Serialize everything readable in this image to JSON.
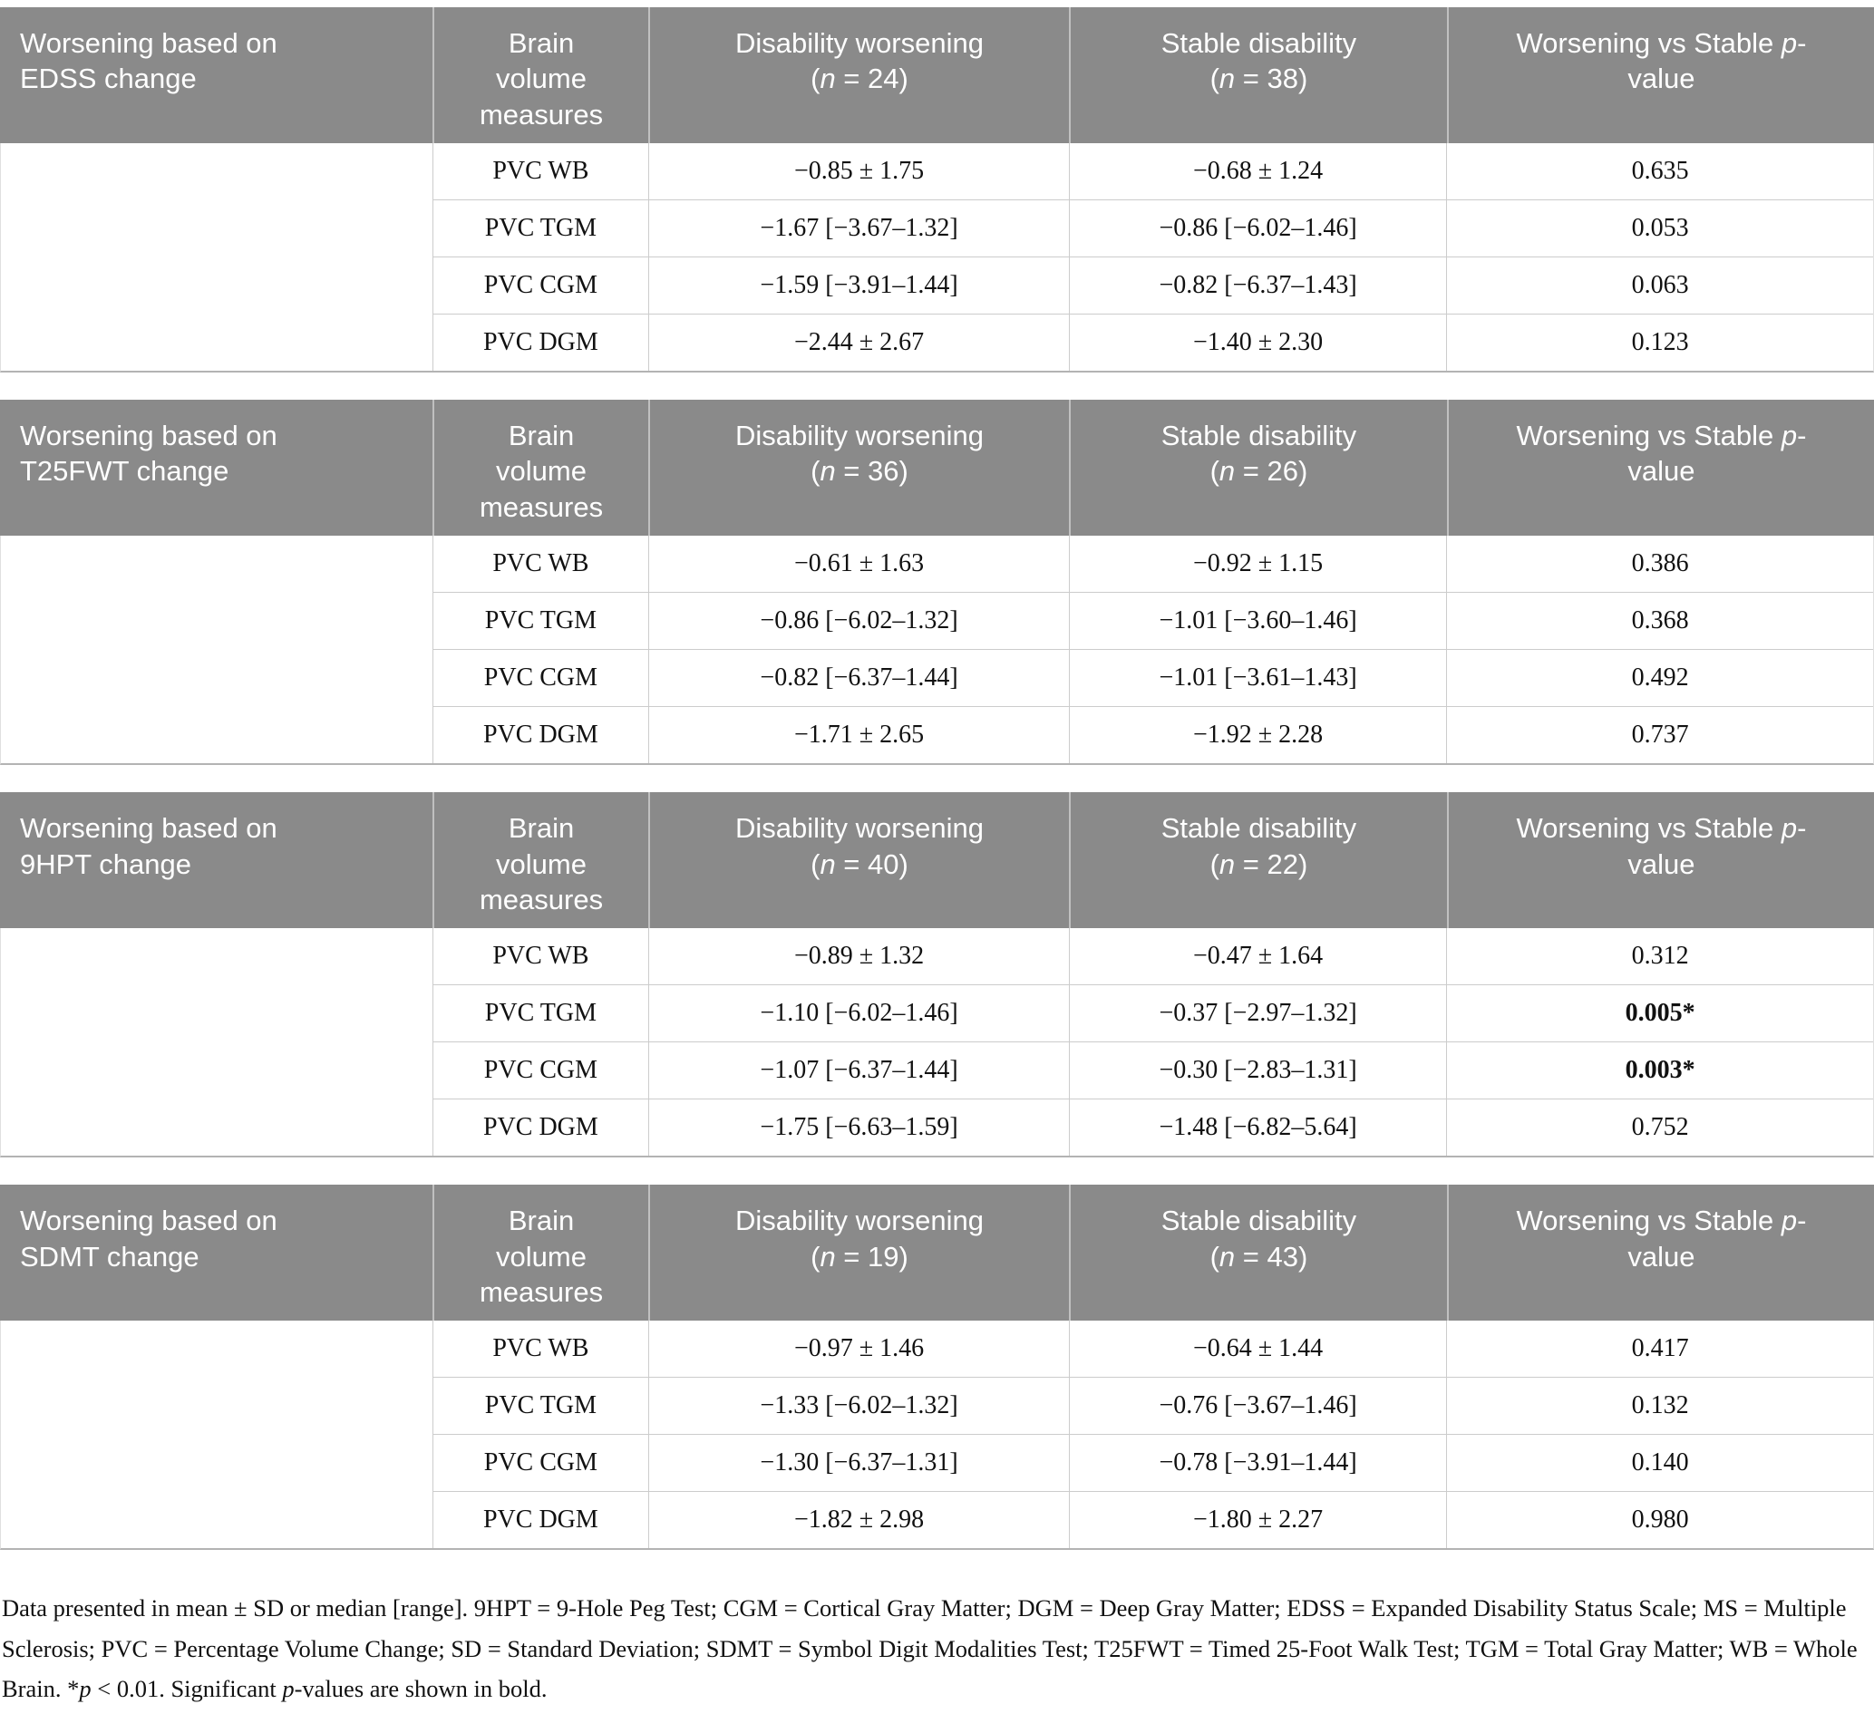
{
  "colors": {
    "header_bg": "#8a8a8a",
    "header_text": "#ffffff",
    "row_border": "#cccccc",
    "body_text": "#111111"
  },
  "shared_header": {
    "measures_lines": [
      "Brain",
      "volume",
      "measures"
    ],
    "worsening_label": "Disability worsening",
    "stable_label": "Stable disability",
    "p_pre": "Worsening vs Stable ",
    "p_italic": "p",
    "p_hyphen": "-",
    "p_post": "value",
    "paren_open": "(",
    "n_italic": "n",
    "eq": " = ",
    "paren_close": ")"
  },
  "tables": [
    {
      "title_line1": "Worsening based on",
      "title_line2": "EDSS change",
      "n_worsening": "24",
      "n_stable": "38",
      "rows": [
        {
          "measure": "PVC WB",
          "worsening": "−0.85 ± 1.75",
          "stable": "−0.68 ± 1.24",
          "p": "0.635",
          "p_bold": false
        },
        {
          "measure": "PVC TGM",
          "worsening": "−1.67 [−3.67–1.32]",
          "stable": "−0.86 [−6.02–1.46]",
          "p": "0.053",
          "p_bold": false
        },
        {
          "measure": "PVC CGM",
          "worsening": "−1.59 [−3.91–1.44]",
          "stable": "−0.82 [−6.37–1.43]",
          "p": "0.063",
          "p_bold": false
        },
        {
          "measure": "PVC DGM",
          "worsening": "−2.44 ± 2.67",
          "stable": "−1.40 ± 2.30",
          "p": "0.123",
          "p_bold": false
        }
      ]
    },
    {
      "title_line1": "Worsening based on",
      "title_line2": "T25FWT change",
      "n_worsening": "36",
      "n_stable": "26",
      "rows": [
        {
          "measure": "PVC WB",
          "worsening": "−0.61 ± 1.63",
          "stable": "−0.92 ± 1.15",
          "p": "0.386",
          "p_bold": false
        },
        {
          "measure": "PVC TGM",
          "worsening": "−0.86 [−6.02–1.32]",
          "stable": "−1.01 [−3.60–1.46]",
          "p": "0.368",
          "p_bold": false
        },
        {
          "measure": "PVC CGM",
          "worsening": "−0.82 [−6.37–1.44]",
          "stable": "−1.01 [−3.61–1.43]",
          "p": "0.492",
          "p_bold": false
        },
        {
          "measure": "PVC DGM",
          "worsening": "−1.71 ± 2.65",
          "stable": "−1.92 ± 2.28",
          "p": "0.737",
          "p_bold": false
        }
      ]
    },
    {
      "title_line1": "Worsening based on",
      "title_line2": "9HPT change",
      "n_worsening": "40",
      "n_stable": "22",
      "rows": [
        {
          "measure": "PVC WB",
          "worsening": "−0.89 ± 1.32",
          "stable": "−0.47 ± 1.64",
          "p": "0.312",
          "p_bold": false
        },
        {
          "measure": "PVC TGM",
          "worsening": "−1.10 [−6.02–1.46]",
          "stable": "−0.37 [−2.97–1.32]",
          "p": "0.005*",
          "p_bold": true
        },
        {
          "measure": "PVC CGM",
          "worsening": "−1.07 [−6.37–1.44]",
          "stable": "−0.30 [−2.83–1.31]",
          "p": "0.003*",
          "p_bold": true
        },
        {
          "measure": "PVC DGM",
          "worsening": "−1.75 [−6.63–1.59]",
          "stable": "−1.48 [−6.82–5.64]",
          "p": "0.752",
          "p_bold": false
        }
      ]
    },
    {
      "title_line1": "Worsening based on",
      "title_line2": "SDMT change",
      "n_worsening": "19",
      "n_stable": "43",
      "rows": [
        {
          "measure": "PVC WB",
          "worsening": "−0.97 ± 1.46",
          "stable": "−0.64 ± 1.44",
          "p": "0.417",
          "p_bold": false
        },
        {
          "measure": "PVC TGM",
          "worsening": "−1.33 [−6.02–1.32]",
          "stable": "−0.76 [−3.67–1.46]",
          "p": "0.132",
          "p_bold": false
        },
        {
          "measure": "PVC CGM",
          "worsening": "−1.30 [−6.37–1.31]",
          "stable": "−0.78 [−3.91–1.44]",
          "p": "0.140",
          "p_bold": false
        },
        {
          "measure": "PVC DGM",
          "worsening": "−1.82 ± 2.98",
          "stable": "−1.80 ± 2.27",
          "p": "0.980",
          "p_bold": false
        }
      ]
    }
  ],
  "footnote": {
    "part1": "Data presented in mean ± SD or median [range]. 9HPT = 9-Hole Peg Test; CGM = Cortical Gray Matter; DGM = Deep Gray Matter; EDSS = Expanded Disability Status Scale; MS = Multiple Sclerosis; PVC = Percentage Volume Change; SD = Standard Deviation; SDMT = Symbol Digit Modalities Test; T25FWT = Timed 25-Foot Walk Test; TGM = Total Gray Matter; WB = Whole Brain. *",
    "p1": "p",
    "part2": " < 0.01. Significant ",
    "p2": "p",
    "part3": "-values are shown in bold."
  }
}
